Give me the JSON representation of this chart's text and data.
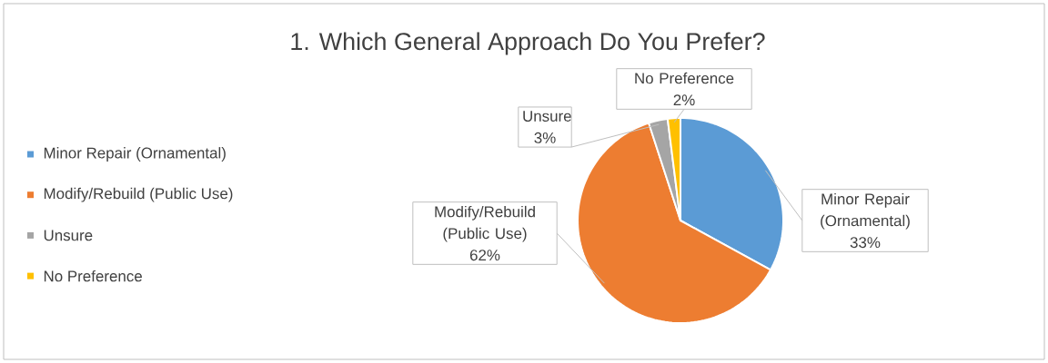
{
  "chart_data": {
    "type": "pie",
    "title": "1. Which General Approach Do You Prefer?",
    "categories": [
      "Minor Repair (Ornamental)",
      "Modify/Rebuild (Public Use)",
      "Unsure",
      "No Preference"
    ],
    "values": [
      33,
      62,
      3,
      2
    ],
    "colors": [
      "#5b9bd5",
      "#ed7d31",
      "#a5a5a5",
      "#ffc000"
    ],
    "value_labels": [
      "33%",
      "62%",
      "3%",
      "2%"
    ],
    "legend": "left"
  }
}
